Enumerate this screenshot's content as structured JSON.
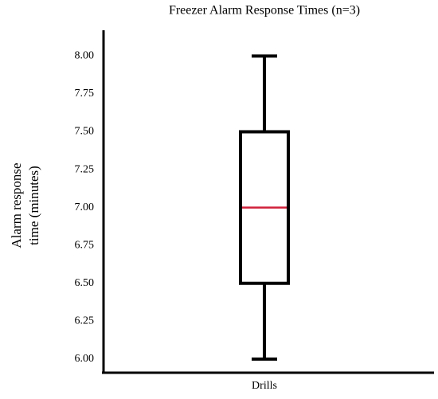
{
  "chart_data": {
    "type": "box",
    "title": "Freezer Alarm Response Times (n=3)",
    "ylabel": [
      "Alarm response",
      "time (minutes)"
    ],
    "categories": [
      "Drills"
    ],
    "min": [
      6.0
    ],
    "q1": [
      6.5
    ],
    "median": [
      7.0
    ],
    "q3": [
      7.5
    ],
    "max": [
      8.0
    ],
    "color": "#000000",
    "median_color": "#d0203a",
    "ylim": [
      5.91,
      8.17
    ],
    "yticks": [
      {
        "value": 6,
        "label": "6.00"
      },
      {
        "value": 6.25,
        "label": "6.25"
      },
      {
        "value": 6.5,
        "label": "6.50"
      },
      {
        "value": 6.75,
        "label": "6.75"
      },
      {
        "value": 7,
        "label": "7.00"
      },
      {
        "value": 7.25,
        "label": "7.25"
      },
      {
        "value": 7.5,
        "label": "7.50"
      },
      {
        "value": 7.75,
        "label": "7.75"
      },
      {
        "value": 8,
        "label": "8.00"
      }
    ],
    "grid": false
  }
}
